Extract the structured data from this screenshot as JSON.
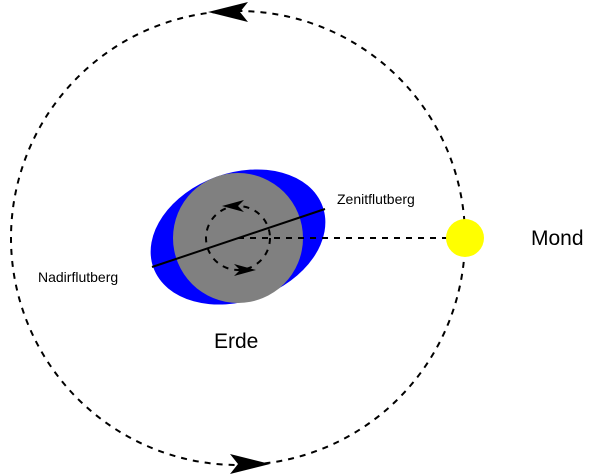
{
  "labels": {
    "zenith_bulge": "Zenitflutberg",
    "nadir_bulge": "Nadirflutberg",
    "earth": "Erde",
    "moon": "Mond"
  },
  "colors": {
    "water_bulge": "#0000ff",
    "earth": "#808080",
    "moon": "#ffff00",
    "lines": "#000000",
    "background": "#ffffff"
  },
  "icons": {
    "orbit_arrow_top": "arrowhead-left-icon",
    "orbit_arrow_bottom": "arrowhead-right-icon",
    "rotation_arrow_top": "arrowhead-left-icon",
    "rotation_arrow_bottom": "arrowhead-right-icon"
  }
}
